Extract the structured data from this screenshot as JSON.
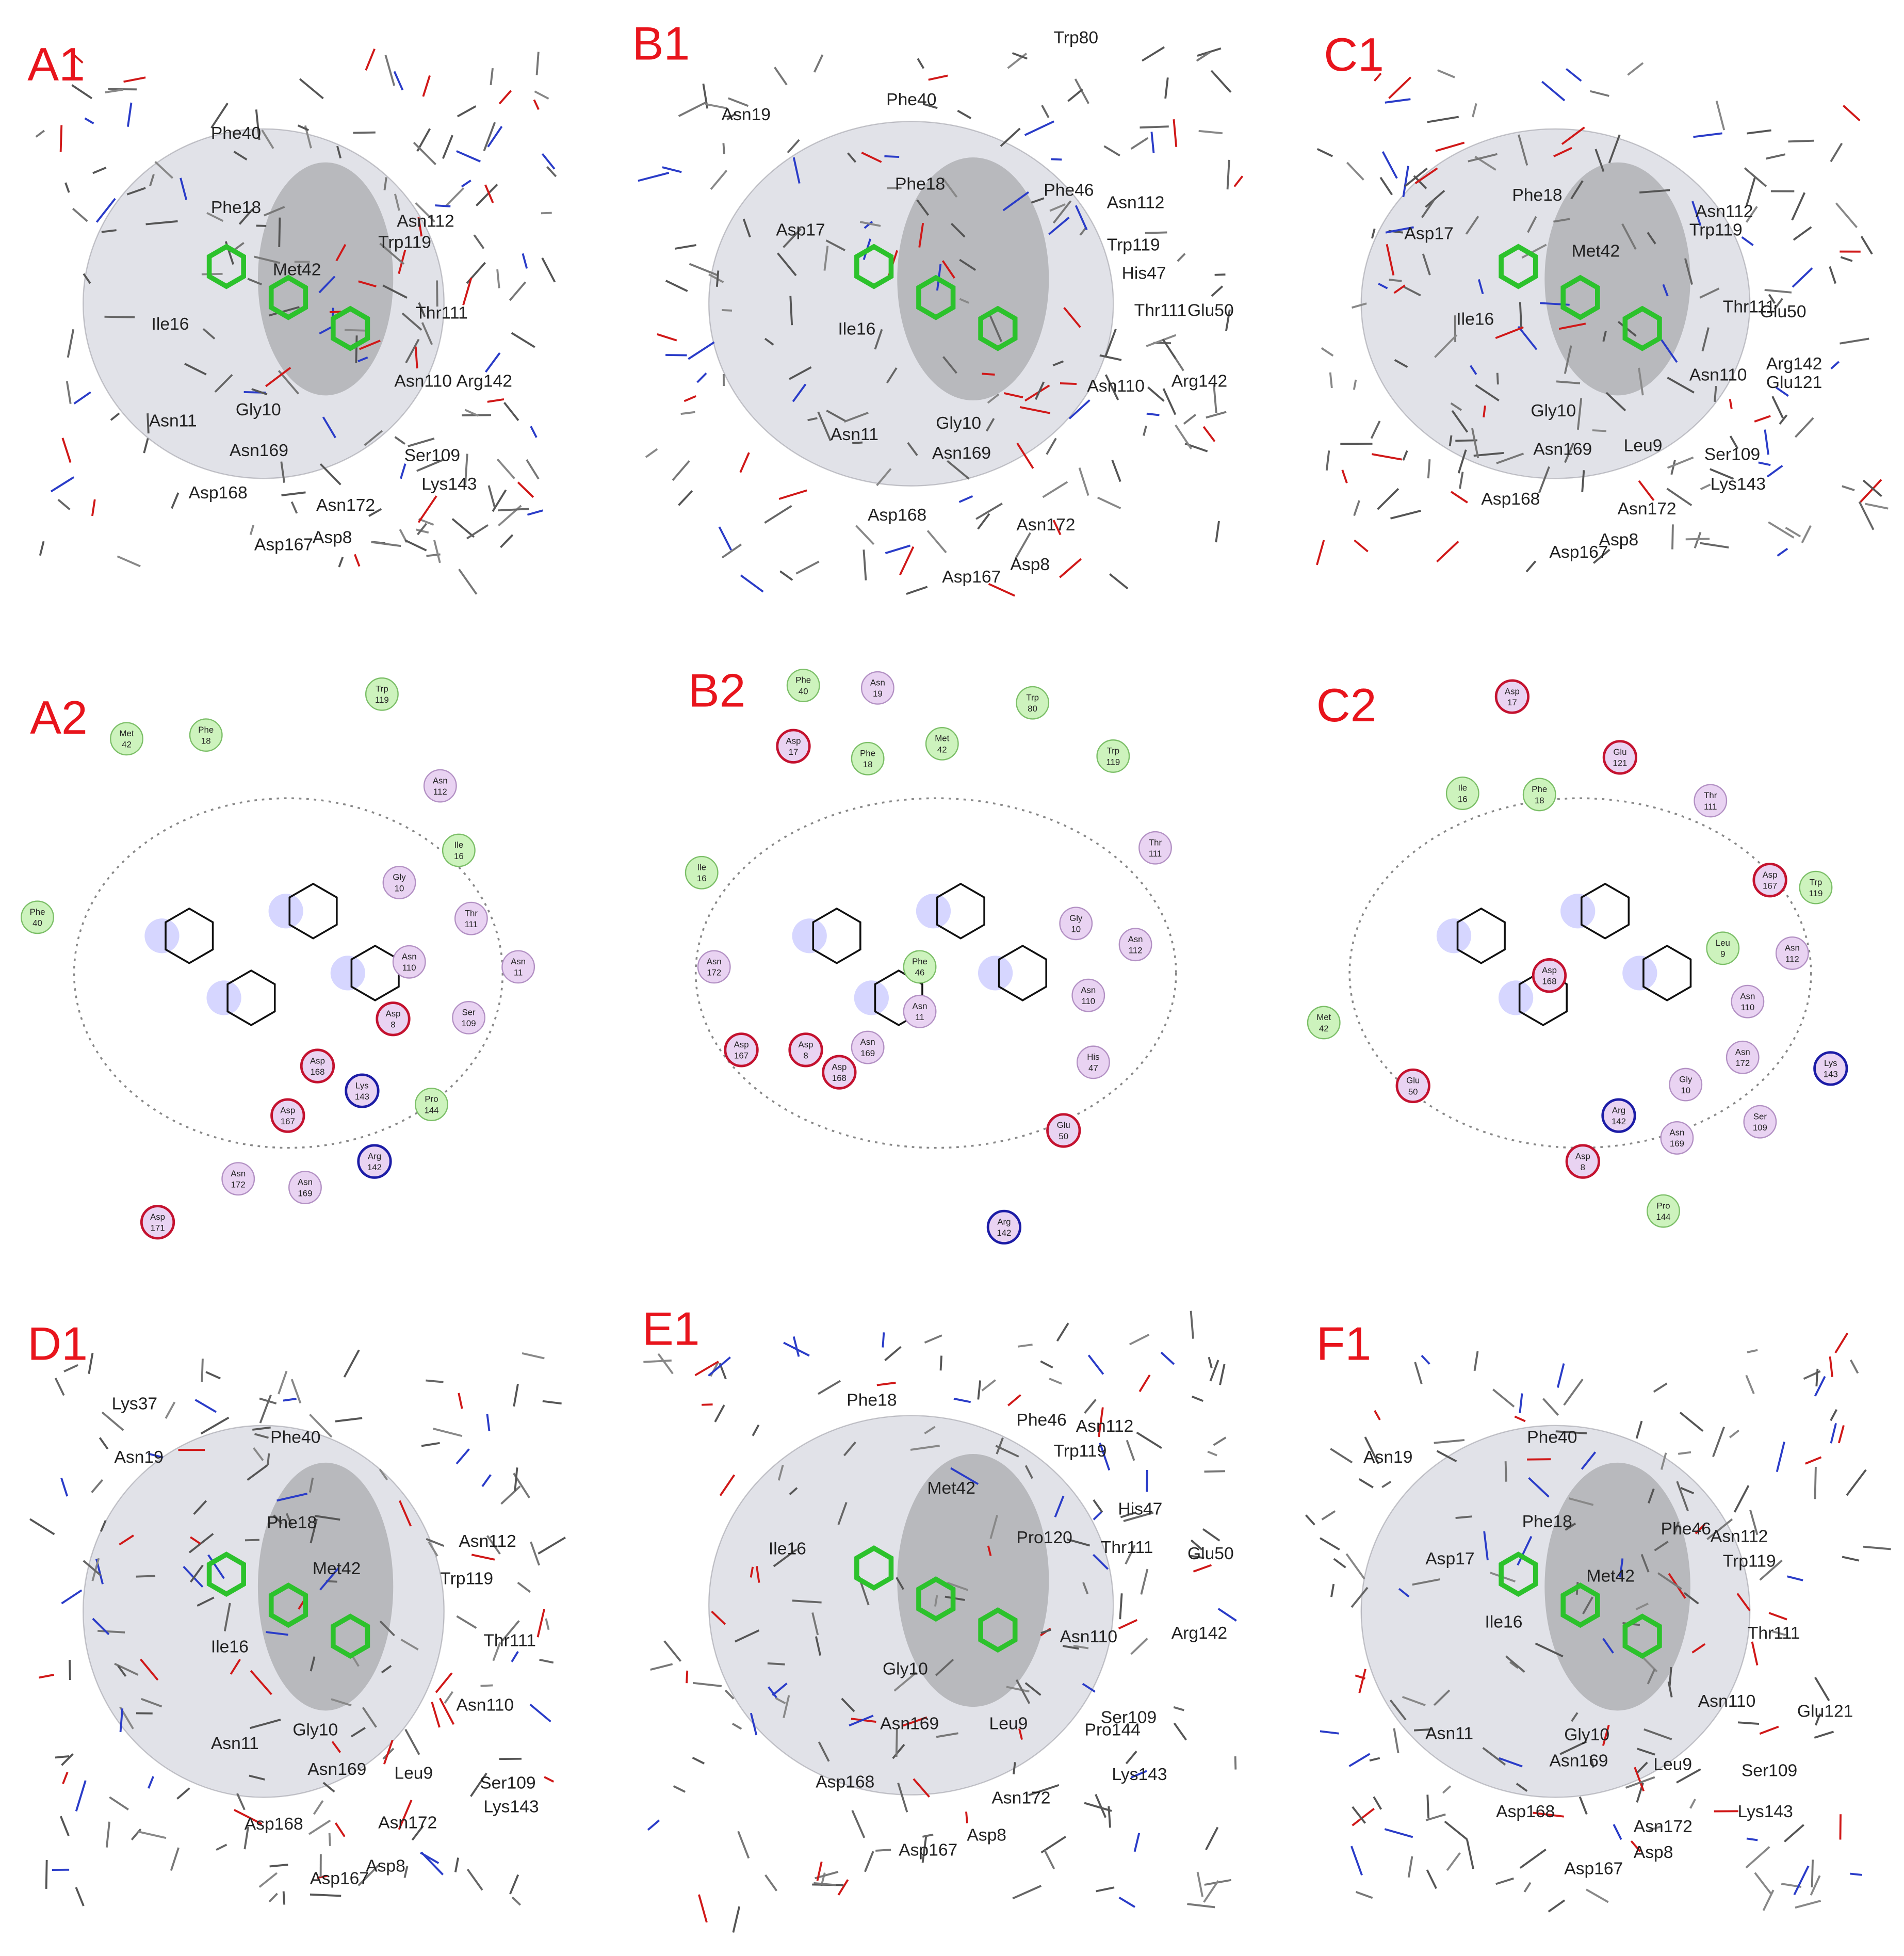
{
  "panels": [
    {
      "label": "A1",
      "residues": [
        "Phe40",
        "Phe18",
        "Asn112",
        "Met42",
        "Trp119",
        "Ile16",
        "Thr111",
        "Gly10",
        "Asn110",
        "Arg142",
        "Asn11",
        "Asn169",
        "Ser109",
        "Asp168",
        "Lys143",
        "Asn172",
        "Asp167",
        "Asp8"
      ]
    },
    {
      "label": "B1",
      "residues": [
        "Trp80",
        "Phe40",
        "Asn19",
        "Phe18",
        "Phe46",
        "Asn112",
        "Asp17",
        "Trp119",
        "His47",
        "Ile16",
        "Thr111",
        "Glu50",
        "Asn110",
        "Arg142",
        "Asn11",
        "Gly10",
        "Asn169",
        "Asp168",
        "Asn172",
        "Asp167",
        "Asp8"
      ]
    },
    {
      "label": "C1",
      "residues": [
        "Phe18",
        "Asn112",
        "Asp17",
        "Trp119",
        "Met42",
        "Ile16",
        "Thr111",
        "Glu50",
        "Asn110",
        "Arg142",
        "Glu121",
        "Gly10",
        "Leu9",
        "Asn169",
        "Ser109",
        "Asp168",
        "Lys143",
        "Asn172",
        "Asp8",
        "Asp167"
      ]
    },
    {
      "label": "A2",
      "residues": [
        {
          "name": "Met",
          "number": 42,
          "color": "#cdf3bd",
          "stroke": "#7cbf68"
        },
        {
          "name": "Phe",
          "number": 18,
          "color": "#cdf3bd",
          "stroke": "#7cbf68"
        },
        {
          "name": "Trp",
          "number": 119,
          "color": "#cdf3bd",
          "stroke": "#7cbf68"
        },
        {
          "name": "Asn",
          "number": 112,
          "color": "#e9d3f2",
          "stroke": "#b391c4"
        },
        {
          "name": "Ile",
          "number": 16,
          "color": "#cdf3bd",
          "stroke": "#7cbf68"
        },
        {
          "name": "Gly",
          "number": 10,
          "color": "#e9d3f2",
          "stroke": "#b391c4"
        },
        {
          "name": "Thr",
          "number": 111,
          "color": "#e9d3f2",
          "stroke": "#b391c4"
        },
        {
          "name": "Phe",
          "number": 40,
          "color": "#cdf3bd",
          "stroke": "#7cbf68"
        },
        {
          "name": "Asn",
          "number": 110,
          "color": "#e9d3f2",
          "stroke": "#b391c4"
        },
        {
          "name": "Asn",
          "number": 11,
          "color": "#e9d3f2",
          "stroke": "#b391c4"
        },
        {
          "name": "Asp",
          "number": 8,
          "color": "#e9d3f2",
          "stroke": "#c4122f"
        },
        {
          "name": "Ser",
          "number": 109,
          "color": "#e9d3f2",
          "stroke": "#b391c4"
        },
        {
          "name": "Asp",
          "number": 168,
          "color": "#e9d3f2",
          "stroke": "#c4122f"
        },
        {
          "name": "Lys",
          "number": 143,
          "color": "#e9d3f2",
          "stroke": "#1c1ca6"
        },
        {
          "name": "Pro",
          "number": 144,
          "color": "#cdf3bd",
          "stroke": "#7cbf68"
        },
        {
          "name": "Asp",
          "number": 167,
          "color": "#e9d3f2",
          "stroke": "#c4122f"
        },
        {
          "name": "Arg",
          "number": 142,
          "color": "#e9d3f2",
          "stroke": "#1c1ca6"
        },
        {
          "name": "Asn",
          "number": 172,
          "color": "#e9d3f2",
          "stroke": "#b391c4"
        },
        {
          "name": "Asn",
          "number": 169,
          "color": "#e9d3f2",
          "stroke": "#b391c4"
        },
        {
          "name": "Asp",
          "number": 171,
          "color": "#e9d3f2",
          "stroke": "#c4122f"
        }
      ]
    },
    {
      "label": "B2",
      "residues": [
        {
          "name": "Phe",
          "number": 40,
          "color": "#cdf3bd",
          "stroke": "#7cbf68"
        },
        {
          "name": "Asn",
          "number": 19,
          "color": "#e9d3f2",
          "stroke": "#b391c4"
        },
        {
          "name": "Trp",
          "number": 80,
          "color": "#cdf3bd",
          "stroke": "#7cbf68"
        },
        {
          "name": "Asp",
          "number": 17,
          "color": "#e9d3f2",
          "stroke": "#c4122f"
        },
        {
          "name": "Phe",
          "number": 18,
          "color": "#cdf3bd",
          "stroke": "#7cbf68"
        },
        {
          "name": "Met",
          "number": 42,
          "color": "#cdf3bd",
          "stroke": "#7cbf68"
        },
        {
          "name": "Trp",
          "number": 119,
          "color": "#cdf3bd",
          "stroke": "#7cbf68"
        },
        {
          "name": "Ile",
          "number": 16,
          "color": "#cdf3bd",
          "stroke": "#7cbf68"
        },
        {
          "name": "Thr",
          "number": 111,
          "color": "#e9d3f2",
          "stroke": "#b391c4"
        },
        {
          "name": "Gly",
          "number": 10,
          "color": "#e9d3f2",
          "stroke": "#b391c4"
        },
        {
          "name": "Asn",
          "number": 112,
          "color": "#e9d3f2",
          "stroke": "#b391c4"
        },
        {
          "name": "Asn",
          "number": 172,
          "color": "#e9d3f2",
          "stroke": "#b391c4"
        },
        {
          "name": "Phe",
          "number": 46,
          "color": "#cdf3bd",
          "stroke": "#7cbf68"
        },
        {
          "name": "Asn",
          "number": 11,
          "color": "#e9d3f2",
          "stroke": "#b391c4"
        },
        {
          "name": "Asn",
          "number": 110,
          "color": "#e9d3f2",
          "stroke": "#b391c4"
        },
        {
          "name": "Asp",
          "number": 167,
          "color": "#e9d3f2",
          "stroke": "#c4122f"
        },
        {
          "name": "Asp",
          "number": 8,
          "color": "#e9d3f2",
          "stroke": "#c4122f"
        },
        {
          "name": "Asn",
          "number": 169,
          "color": "#e9d3f2",
          "stroke": "#b391c4"
        },
        {
          "name": "Asp",
          "number": 168,
          "color": "#e9d3f2",
          "stroke": "#c4122f"
        },
        {
          "name": "His",
          "number": 47,
          "color": "#e9d3f2",
          "stroke": "#b391c4"
        },
        {
          "name": "Glu",
          "number": 50,
          "color": "#e9d3f2",
          "stroke": "#c4122f"
        },
        {
          "name": "Arg",
          "number": 142,
          "color": "#e9d3f2",
          "stroke": "#1c1ca6"
        }
      ]
    },
    {
      "label": "C2",
      "residues": [
        {
          "name": "Asp",
          "number": 17,
          "color": "#e9d3f2",
          "stroke": "#c4122f"
        },
        {
          "name": "Glu",
          "number": 121,
          "color": "#e9d3f2",
          "stroke": "#c4122f"
        },
        {
          "name": "Ile",
          "number": 16,
          "color": "#cdf3bd",
          "stroke": "#7cbf68"
        },
        {
          "name": "Phe",
          "number": 18,
          "color": "#cdf3bd",
          "stroke": "#7cbf68"
        },
        {
          "name": "Thr",
          "number": 111,
          "color": "#e9d3f2",
          "stroke": "#b391c4"
        },
        {
          "name": "Asp",
          "number": 167,
          "color": "#e9d3f2",
          "stroke": "#c4122f"
        },
        {
          "name": "Trp",
          "number": 119,
          "color": "#cdf3bd",
          "stroke": "#7cbf68"
        },
        {
          "name": "Leu",
          "number": 9,
          "color": "#cdf3bd",
          "stroke": "#7cbf68"
        },
        {
          "name": "Asn",
          "number": 112,
          "color": "#e9d3f2",
          "stroke": "#b391c4"
        },
        {
          "name": "Asp",
          "number": 168,
          "color": "#e9d3f2",
          "stroke": "#c4122f"
        },
        {
          "name": "Asn",
          "number": 110,
          "color": "#e9d3f2",
          "stroke": "#b391c4"
        },
        {
          "name": "Met",
          "number": 42,
          "color": "#cdf3bd",
          "stroke": "#7cbf68"
        },
        {
          "name": "Asn",
          "number": 172,
          "color": "#e9d3f2",
          "stroke": "#b391c4"
        },
        {
          "name": "Lys",
          "number": 143,
          "color": "#e9d3f2",
          "stroke": "#1c1ca6"
        },
        {
          "name": "Glu",
          "number": 50,
          "color": "#e9d3f2",
          "stroke": "#c4122f"
        },
        {
          "name": "Gly",
          "number": 10,
          "color": "#e9d3f2",
          "stroke": "#b391c4"
        },
        {
          "name": "Arg",
          "number": 142,
          "color": "#e9d3f2",
          "stroke": "#1c1ca6"
        },
        {
          "name": "Ser",
          "number": 109,
          "color": "#e9d3f2",
          "stroke": "#b391c4"
        },
        {
          "name": "Asn",
          "number": 169,
          "color": "#e9d3f2",
          "stroke": "#b391c4"
        },
        {
          "name": "Asp",
          "number": 8,
          "color": "#e9d3f2",
          "stroke": "#c4122f"
        },
        {
          "name": "Pro",
          "number": 144,
          "color": "#cdf3bd",
          "stroke": "#7cbf68"
        }
      ]
    },
    {
      "label": "D1",
      "residues": [
        "Lys37",
        "Phe40",
        "Asn19",
        "Phe18",
        "Asn112",
        "Met42",
        "Trp119",
        "Thr111",
        "Ile16",
        "Asn110",
        "Gly10",
        "Asn11",
        "Asn169",
        "Leu9",
        "Ser109",
        "Asp168",
        "Asn172",
        "Lys143",
        "Asp8",
        "Asp167"
      ]
    },
    {
      "label": "E1",
      "residues": [
        "Phe18",
        "Phe46",
        "Asn112",
        "Trp119",
        "Met42",
        "His47",
        "Ile16",
        "Pro120",
        "Thr111",
        "Glu50",
        "Asn110",
        "Arg142",
        "Gly10",
        "Leu9",
        "Ser109",
        "Asn169",
        "Pro144",
        "Asp168",
        "Lys143",
        "Asn172",
        "Asp8",
        "Asp167"
      ]
    },
    {
      "label": "F1",
      "residues": [
        "Asn19",
        "Phe40",
        "Phe18",
        "Phe46",
        "Asn112",
        "Asp17",
        "Met42",
        "Trp119",
        "Ile16",
        "Thr111",
        "Asn110",
        "Glu121",
        "Gly10",
        "Asn11",
        "Asn169",
        "Leu9",
        "Ser109",
        "Asp168",
        "Asn172",
        "Lys143",
        "Asp8",
        "Asp167"
      ]
    }
  ]
}
